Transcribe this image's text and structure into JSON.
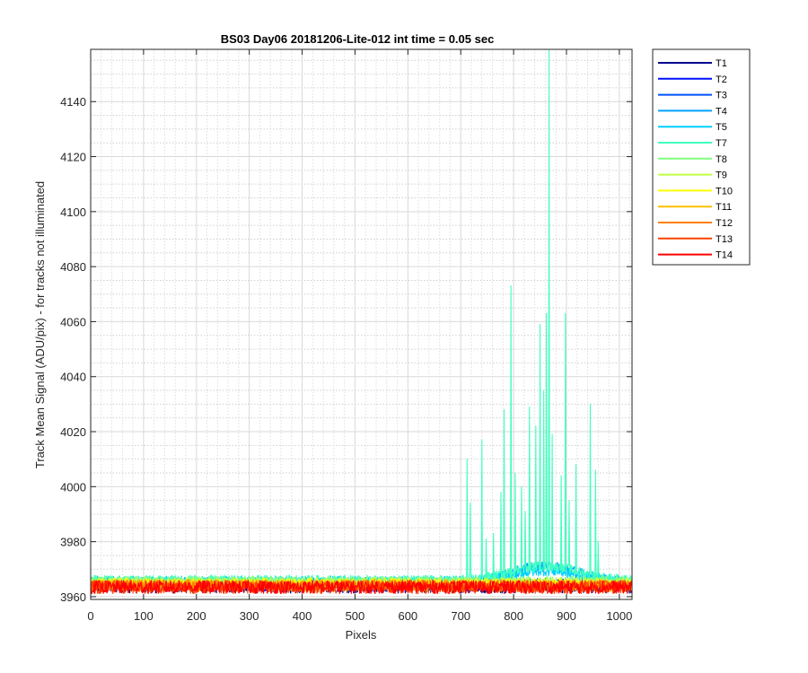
{
  "chart_data": {
    "type": "line",
    "title": "BS03 Day06 20181206-Lite-012 int time = 0.05 sec",
    "xlabel": "Pixels",
    "ylabel": "Track Mean Signal (ADU/pix) - for tracks not illuminated",
    "xlim": [
      0,
      1024
    ],
    "ylim": [
      3959,
      4159
    ],
    "x_ticks": [
      0,
      100,
      200,
      300,
      400,
      500,
      600,
      700,
      800,
      900,
      1000
    ],
    "y_ticks": [
      3960,
      3980,
      4000,
      4020,
      4040,
      4060,
      4080,
      4100,
      4120,
      4140
    ],
    "grid": true,
    "minor_grid_y": true,
    "legend_position": "outside-top-right",
    "series": [
      {
        "name": "T1",
        "color": "#00008f",
        "baseline": 3963.5,
        "noise": 2.2
      },
      {
        "name": "T2",
        "color": "#0010ff",
        "baseline": 3964.0,
        "noise": 2.2
      },
      {
        "name": "T3",
        "color": "#0050ff",
        "baseline": 3964.5,
        "noise": 2.2
      },
      {
        "name": "T4",
        "color": "#00a0ff",
        "baseline": 3965.0,
        "noise": 2.0,
        "hump": 6
      },
      {
        "name": "T5",
        "color": "#00d0ff",
        "baseline": 3965.5,
        "noise": 2.0,
        "hump": 4
      },
      {
        "name": "T7",
        "color": "#40ffc0",
        "baseline": 3966.0,
        "noise": 1.8,
        "hump": 5,
        "spikes": [
          {
            "x": 712,
            "y": 4010
          },
          {
            "x": 718,
            "y": 3994
          },
          {
            "x": 740,
            "y": 4017
          },
          {
            "x": 748,
            "y": 3981
          },
          {
            "x": 762,
            "y": 3983
          },
          {
            "x": 776,
            "y": 3998
          },
          {
            "x": 782,
            "y": 4028
          },
          {
            "x": 795,
            "y": 4073
          },
          {
            "x": 803,
            "y": 4005
          },
          {
            "x": 815,
            "y": 4000
          },
          {
            "x": 822,
            "y": 3991
          },
          {
            "x": 830,
            "y": 4029
          },
          {
            "x": 842,
            "y": 4022
          },
          {
            "x": 850,
            "y": 4059
          },
          {
            "x": 857,
            "y": 4035
          },
          {
            "x": 862,
            "y": 4063
          },
          {
            "x": 867,
            "y": 4159
          },
          {
            "x": 873,
            "y": 4019
          },
          {
            "x": 890,
            "y": 4004
          },
          {
            "x": 898,
            "y": 4063
          },
          {
            "x": 905,
            "y": 3995
          },
          {
            "x": 918,
            "y": 4008
          },
          {
            "x": 945,
            "y": 4030
          },
          {
            "x": 955,
            "y": 4006
          },
          {
            "x": 960,
            "y": 3980
          }
        ]
      },
      {
        "name": "T8",
        "color": "#80ff80",
        "baseline": 3965.5,
        "noise": 2.0
      },
      {
        "name": "T9",
        "color": "#c0ff40",
        "baseline": 3965.0,
        "noise": 2.0
      },
      {
        "name": "T10",
        "color": "#ffff00",
        "baseline": 3964.5,
        "noise": 2.2
      },
      {
        "name": "T11",
        "color": "#ffc000",
        "baseline": 3964.0,
        "noise": 2.2
      },
      {
        "name": "T12",
        "color": "#ff8000",
        "baseline": 3964.0,
        "noise": 2.2
      },
      {
        "name": "T13",
        "color": "#ff4000",
        "baseline": 3963.5,
        "noise": 2.4
      },
      {
        "name": "T14",
        "color": "#ff0000",
        "baseline": 3963.5,
        "noise": 2.4
      }
    ]
  }
}
